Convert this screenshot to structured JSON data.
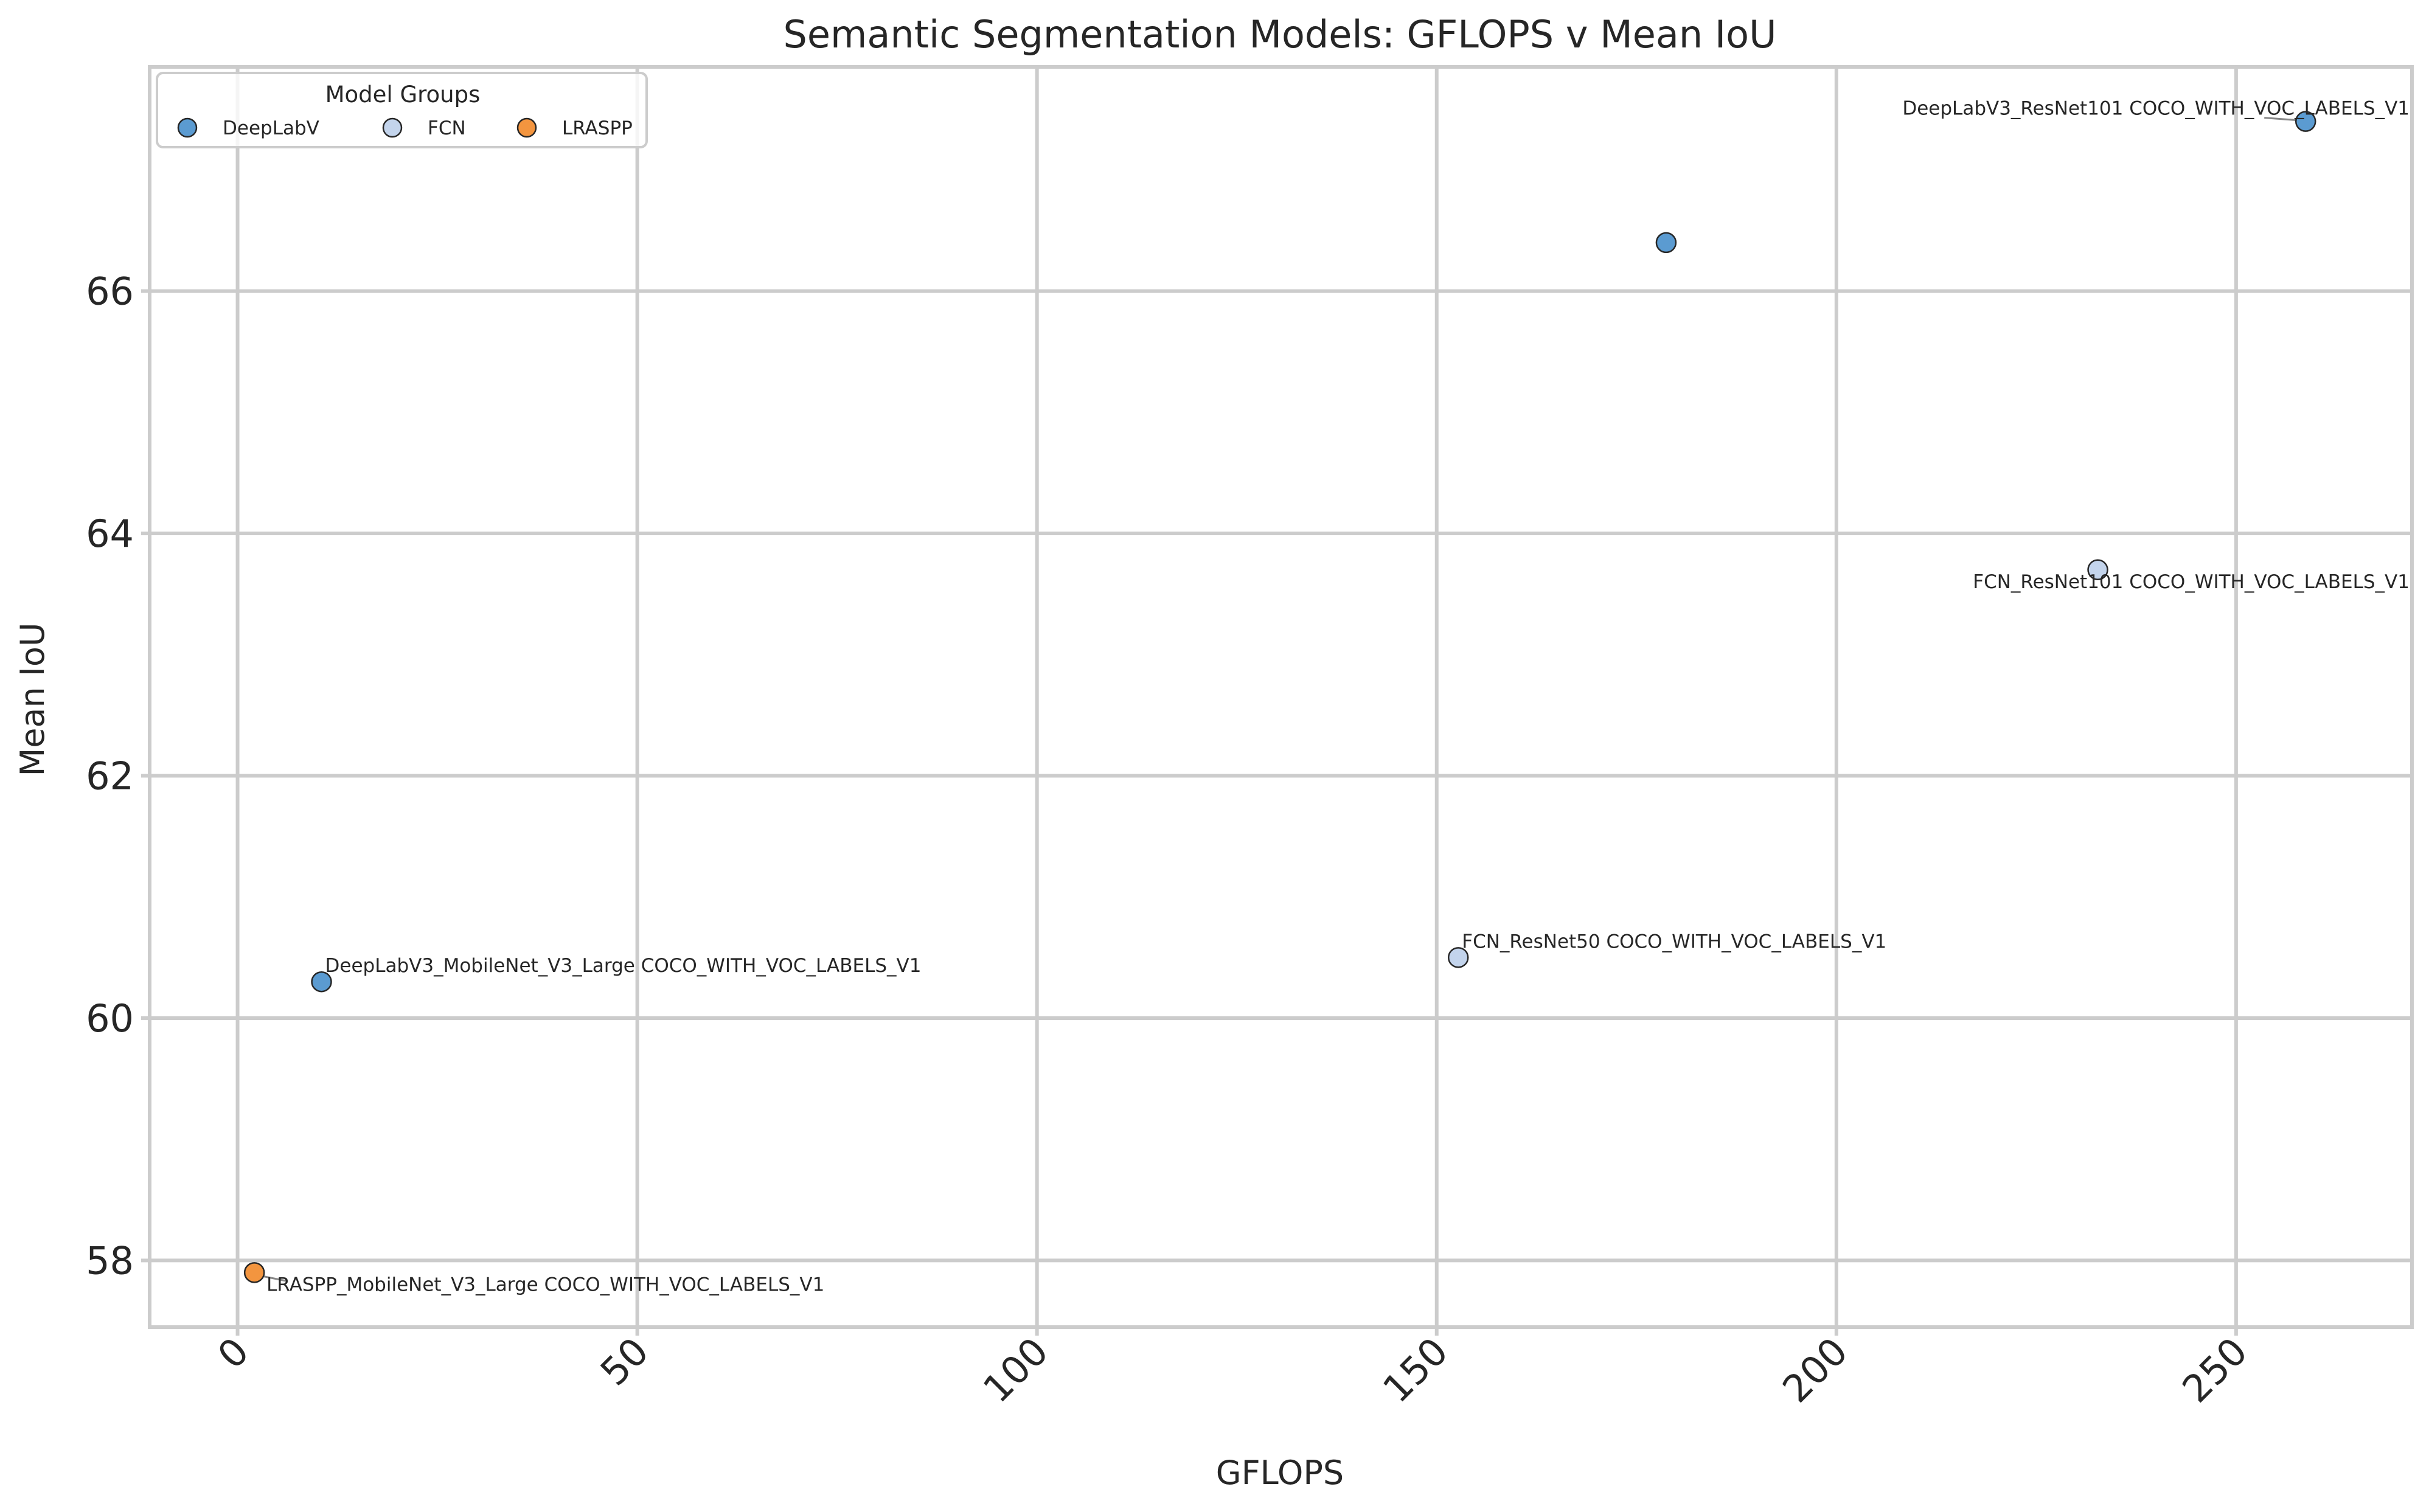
{
  "chart_data": {
    "type": "scatter",
    "title": "Semantic Segmentation Models: GFLOPS v Mean IoU",
    "xlabel": "GFLOPS",
    "ylabel": "Mean IoU",
    "xlim": [
      -11,
      272
    ],
    "ylim": [
      57.45,
      67.85
    ],
    "x_ticks": [
      0,
      50,
      100,
      150,
      200,
      250
    ],
    "y_ticks": [
      58,
      60,
      62,
      64,
      66
    ],
    "x_tick_labels": [
      "0",
      "50",
      "100",
      "150",
      "200",
      "250"
    ],
    "y_tick_labels": [
      "58",
      "60",
      "62",
      "64",
      "66"
    ],
    "grid": true,
    "legend": {
      "title": "Model Groups",
      "placement": "top-left",
      "entries": [
        {
          "name": "DeepLabV",
          "color": "#5b9bd1"
        },
        {
          "name": "FCN",
          "color": "#c3d4ec"
        },
        {
          "name": "LRASPP",
          "color": "#f3953f"
        }
      ]
    },
    "series": [
      {
        "name": "DeepLabV",
        "color": "#5b9bd1",
        "points": [
          {
            "x": 10.5,
            "y": 60.3,
            "label": "DeepLabV3_MobileNet_V3_Large COCO_WITH_VOC_LABELS_V1"
          },
          {
            "x": 178.7,
            "y": 66.4,
            "label": ""
          },
          {
            "x": 258.7,
            "y": 67.4,
            "label": "DeepLabV3_ResNet101 COCO_WITH_VOC_LABELS_V1"
          }
        ]
      },
      {
        "name": "FCN",
        "color": "#c3d4ec",
        "points": [
          {
            "x": 152.7,
            "y": 60.5,
            "label": "FCN_ResNet50 COCO_WITH_VOC_LABELS_V1"
          },
          {
            "x": 232.7,
            "y": 63.7,
            "label": "FCN_ResNet101 COCO_WITH_VOC_LABELS_V1"
          }
        ]
      },
      {
        "name": "LRASPP",
        "color": "#f3953f",
        "points": [
          {
            "x": 2.1,
            "y": 57.9,
            "label": "LRASPP_MobileNet_V3_Large COCO_WITH_VOC_LABELS_V1"
          }
        ]
      }
    ]
  }
}
